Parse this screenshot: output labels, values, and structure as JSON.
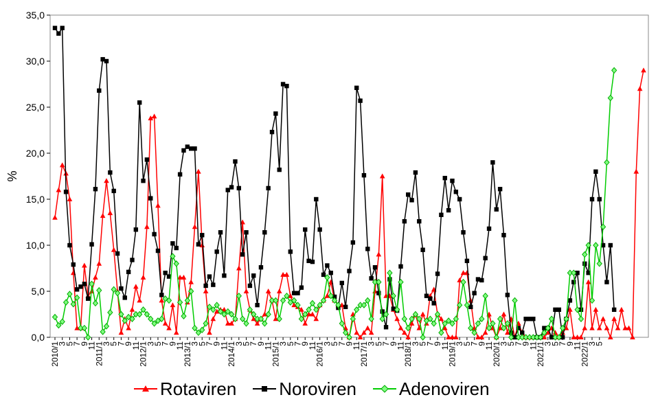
{
  "chart_data": {
    "type": "line",
    "ylabel": "%",
    "ylim": [
      0,
      35
    ],
    "yticks": [
      "35,0",
      "30,0",
      "25,0",
      "20,0",
      "15,0",
      "10,0",
      "5,0",
      "0,0"
    ],
    "x_start": "2010/1",
    "x_end": "2022/5",
    "x_tick_labels": [
      "2010/1",
      "3",
      "5",
      "7",
      "9",
      "11",
      "2011/1",
      "3",
      "5",
      "7",
      "9",
      "11",
      "2012/1",
      "3",
      "5",
      "7",
      "9",
      "11",
      "2013/1",
      "3",
      "5",
      "7",
      "9",
      "11",
      "2014/1",
      "3",
      "5",
      "7",
      "9",
      "11",
      "2015/1",
      "3",
      "5",
      "7",
      "9",
      "11",
      "2016/1",
      "3",
      "5",
      "7",
      "9",
      "11",
      "2017/1",
      "3",
      "5",
      "7",
      "9",
      "11",
      "2018/1",
      "3",
      "5",
      "7",
      "9",
      "11",
      "2019/1",
      "3",
      "5",
      "7",
      "9",
      "11",
      "2020/1",
      "3",
      "5",
      "7",
      "9",
      "11",
      "2021/1",
      "3",
      "5",
      "7",
      "9",
      "11",
      "2022/1",
      "3",
      "5"
    ],
    "grid": false,
    "legend_position": "bottom",
    "series": [
      {
        "name": "Rotaviren",
        "color": "#ff0000",
        "marker": "triangle",
        "values": [
          13.0,
          16.0,
          18.7,
          17.8,
          15.0,
          7.0,
          1.0,
          1.0,
          7.8,
          4.5,
          5.0,
          6.5,
          8.0,
          13.2,
          17.0,
          13.5,
          9.5,
          5.0,
          0.5,
          2.0,
          1.0,
          3.0,
          5.5,
          4.0,
          6.5,
          12.0,
          23.8,
          24.0,
          14.3,
          4.0,
          1.5,
          1.0,
          3.5,
          0.5,
          6.5,
          6.5,
          3.8,
          6.0,
          12.0,
          18.0,
          10.0,
          5.0,
          0.5,
          2.0,
          2.8,
          3.0,
          3.0,
          1.5,
          1.5,
          2.0,
          7.5,
          12.5,
          5.0,
          3.0,
          2.0,
          1.5,
          2.0,
          2.5,
          5.0,
          4.0,
          2.0,
          5.0,
          6.8,
          6.8,
          4.5,
          3.5,
          3.3,
          3.0,
          1.5,
          2.5,
          2.5,
          2.0,
          3.5,
          4.0,
          4.5,
          6.0,
          4.0,
          3.5,
          3.5,
          1.0,
          0.0,
          2.5,
          0.5,
          0.0,
          0.5,
          1.0,
          0.5,
          5.0,
          9.0,
          17.5,
          4.5,
          4.5,
          3.0,
          2.0,
          1.0,
          0.5,
          0.0,
          1.5,
          2.5,
          1.0,
          2.5,
          1.5,
          4.5,
          5.2,
          2.5,
          2.0,
          1.0,
          0.0,
          0.0,
          0.0,
          6.2,
          7.0,
          7.0,
          4.0,
          1.0,
          0.0,
          0.0,
          0.5,
          2.5,
          1.0,
          0.0,
          1.0,
          2.5,
          0.5,
          2.0,
          0.0,
          1.5,
          0.5,
          0.0,
          0.0,
          0.0,
          0.0,
          0.0,
          0.0,
          0.5,
          1.0,
          0.5,
          0.0,
          0.5,
          1.0,
          3.0,
          0.0,
          0.0,
          0.0,
          1.0,
          6.0,
          1.0,
          3.0,
          1.0,
          2.0,
          1.0,
          0.0,
          2.0,
          1.0,
          3.0,
          1.0,
          1.0,
          0.0,
          18.0,
          27.0,
          29.0
        ]
      },
      {
        "name": "Noroviren",
        "color": "#000000",
        "marker": "square",
        "values": [
          33.6,
          33.0,
          33.6,
          15.8,
          10.0,
          7.9,
          5.2,
          5.5,
          5.8,
          4.2,
          10.1,
          16.1,
          26.8,
          30.2,
          30.0,
          17.9,
          15.9,
          9.1,
          5.3,
          4.3,
          7.1,
          8.4,
          11.7,
          25.5,
          17.0,
          19.3,
          15.1,
          11.2,
          9.4,
          4.6,
          7.0,
          6.6,
          10.2,
          9.7,
          17.7,
          20.3,
          20.7,
          20.5,
          20.5,
          10.1,
          11.1,
          5.6,
          6.6,
          5.7,
          9.3,
          11.4,
          6.7,
          16.0,
          16.3,
          19.1,
          16.2,
          9.0,
          11.4,
          5.6,
          6.7,
          3.5,
          7.6,
          11.4,
          16.2,
          22.3,
          24.3,
          18.2,
          27.5,
          27.3,
          9.3,
          4.8,
          4.8,
          5.4,
          11.7,
          8.3,
          8.2,
          15.0,
          11.7,
          6.8,
          7.8,
          7.0,
          4.4,
          3.2,
          5.9,
          3.3,
          7.2,
          10.3,
          27.1,
          25.7,
          17.6,
          9.6,
          6.4,
          7.6,
          4.8,
          2.8,
          1.1,
          6.3,
          3.1,
          2.9,
          7.7,
          12.6,
          15.5,
          14.9,
          17.9,
          12.6,
          9.5,
          4.5,
          4.2,
          3.7,
          6.9,
          13.3,
          17.3,
          13.8,
          17.0,
          15.8,
          15.0,
          11.4,
          8.3,
          3.3,
          4.8,
          6.3,
          6.2,
          8.6,
          11.8,
          19.0,
          13.9,
          16.1,
          11.1,
          4.6,
          0.5,
          0.0,
          1.0,
          0.5,
          2.0,
          2.0,
          2.0,
          0.0,
          0.0,
          1.0,
          1.0,
          0.0,
          3.0,
          3.0,
          0.0,
          2.0,
          4.0,
          6.0,
          7.0,
          3.0,
          8.0,
          7.0,
          15.0,
          18.0,
          15.0,
          10.0,
          6.0,
          10.0,
          3.0
        ]
      },
      {
        "name": "Adenoviren",
        "color": "#00cc00",
        "marker": "diamond",
        "values": [
          2.2,
          1.3,
          1.7,
          3.8,
          4.7,
          3.6,
          4.3,
          1.0,
          1.0,
          0.0,
          5.8,
          3.7,
          5.1,
          0.6,
          1.2,
          2.7,
          5.2,
          4.8,
          2.5,
          1.8,
          2.2,
          2.0,
          2.5,
          2.5,
          3.0,
          2.5,
          2.0,
          1.5,
          1.8,
          2.0,
          4.2,
          4.0,
          8.8,
          8.0,
          3.8,
          2.3,
          4.0,
          5.0,
          1.0,
          0.5,
          0.8,
          1.5,
          3.3,
          3.0,
          3.5,
          2.8,
          2.5,
          2.8,
          2.5,
          2.0,
          4.5,
          2.0,
          1.5,
          3.0,
          2.5,
          2.0,
          2.0,
          1.5,
          2.5,
          4.0,
          4.0,
          2.0,
          4.0,
          4.5,
          3.8,
          4.0,
          3.5,
          2.0,
          2.5,
          3.0,
          3.7,
          3.0,
          3.5,
          4.0,
          6.5,
          4.5,
          4.0,
          3.5,
          1.5,
          0.5,
          0.0,
          2.0,
          3.0,
          3.5,
          3.5,
          4.0,
          2.0,
          6.0,
          6.0,
          2.0,
          2.5,
          7.0,
          4.5,
          3.0,
          6.0,
          2.0,
          1.0,
          2.0,
          2.5,
          2.0,
          0.0,
          1.8,
          2.0,
          1.5,
          2.5,
          0.5,
          1.5,
          1.8,
          1.5,
          2.0,
          3.5,
          6.0,
          3.5,
          1.0,
          0.5,
          1.5,
          2.0,
          4.5,
          1.0,
          1.5,
          0.0,
          2.0,
          1.0,
          1.5,
          0.0,
          4.0,
          0.0,
          0.0,
          0.0,
          0.0,
          0.0,
          0.0,
          0.0,
          0.5,
          1.0,
          2.0,
          0.0,
          0.0,
          1.0,
          2.0,
          7.0,
          7.0,
          3.0,
          2.0,
          9.0,
          10.0,
          4.0,
          10.0,
          8.0,
          12.0,
          19.0,
          26.0,
          29.0
        ]
      }
    ]
  }
}
